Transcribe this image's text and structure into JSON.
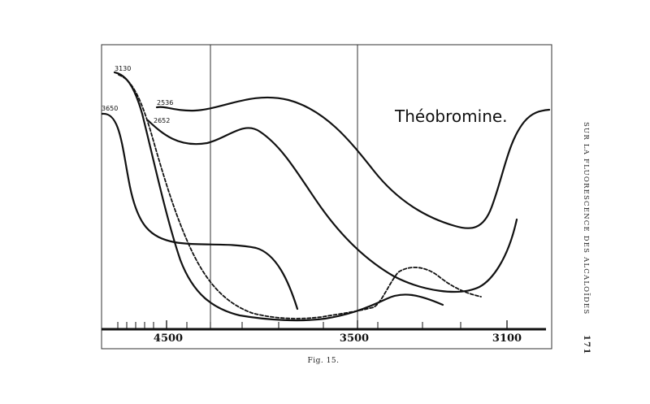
{
  "figure": {
    "title": "Théobromine.",
    "caption": "Fig. 15.",
    "axis_tick_labels": [
      "4500",
      "3500",
      "3100"
    ],
    "curve_labels": [
      "3130",
      "2536",
      "2652",
      "3650"
    ]
  },
  "page": {
    "running_head": "SUR LA FLUORESCENCE DES ALCALOÏDES",
    "number": "171"
  },
  "chart_data": {
    "type": "line",
    "title": "Théobromine.",
    "xlabel": "",
    "ylabel": "",
    "x_tick_labels": [
      "4500",
      "3500",
      "3100"
    ],
    "series": [
      {
        "name": "3130",
        "style": "dashed"
      },
      {
        "name": "2536",
        "style": "solid"
      },
      {
        "name": "2652",
        "style": "solid"
      },
      {
        "name": "3650",
        "style": "solid"
      }
    ],
    "grid": false,
    "legend": "none"
  }
}
